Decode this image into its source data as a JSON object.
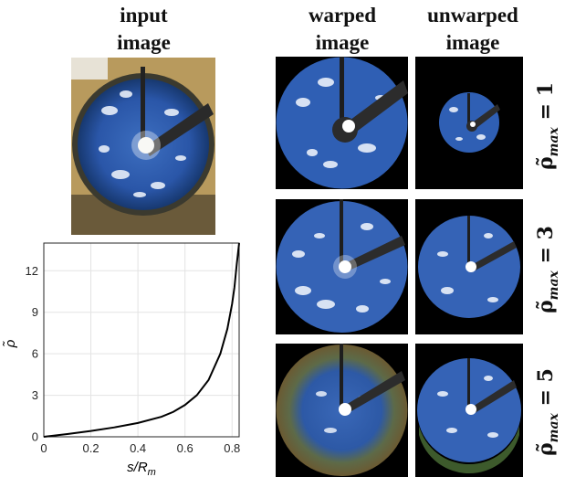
{
  "headers": {
    "input": "input\nimage",
    "warped": "warped\nimage",
    "unwarped": "unwarped\nimage"
  },
  "rows": [
    {
      "label_var": "ρ̃",
      "label_sub": "max",
      "label_eq": "= 1"
    },
    {
      "label_var": "ρ̃",
      "label_sub": "max",
      "label_eq": "= 3"
    },
    {
      "label_var": "ρ̃",
      "label_sub": "max",
      "label_eq": "= 5"
    }
  ],
  "chart_data": {
    "type": "line",
    "xlabel": "s/R_m",
    "ylabel": "ρ̃",
    "xlim": [
      0,
      0.83
    ],
    "ylim": [
      0,
      14
    ],
    "xticks": [
      "0",
      "0.2",
      "0.4",
      "0.6",
      "0.8"
    ],
    "xtick_values": [
      0,
      0.2,
      0.4,
      0.6,
      0.8
    ],
    "yticks": [
      "0",
      "3",
      "6",
      "9",
      "12"
    ],
    "ytick_values": [
      0,
      3,
      6,
      9,
      12
    ],
    "grid": true,
    "series": [
      {
        "color": "#000000",
        "x": [
          0,
          0.1,
          0.2,
          0.3,
          0.4,
          0.5,
          0.55,
          0.6,
          0.65,
          0.7,
          0.75,
          0.78,
          0.8,
          0.81,
          0.82,
          0.83
        ],
        "y": [
          0,
          0.2,
          0.42,
          0.68,
          1.0,
          1.45,
          1.8,
          2.3,
          3.0,
          4.1,
          6.0,
          7.8,
          9.6,
          10.8,
          12.5,
          14.5
        ]
      }
    ]
  }
}
